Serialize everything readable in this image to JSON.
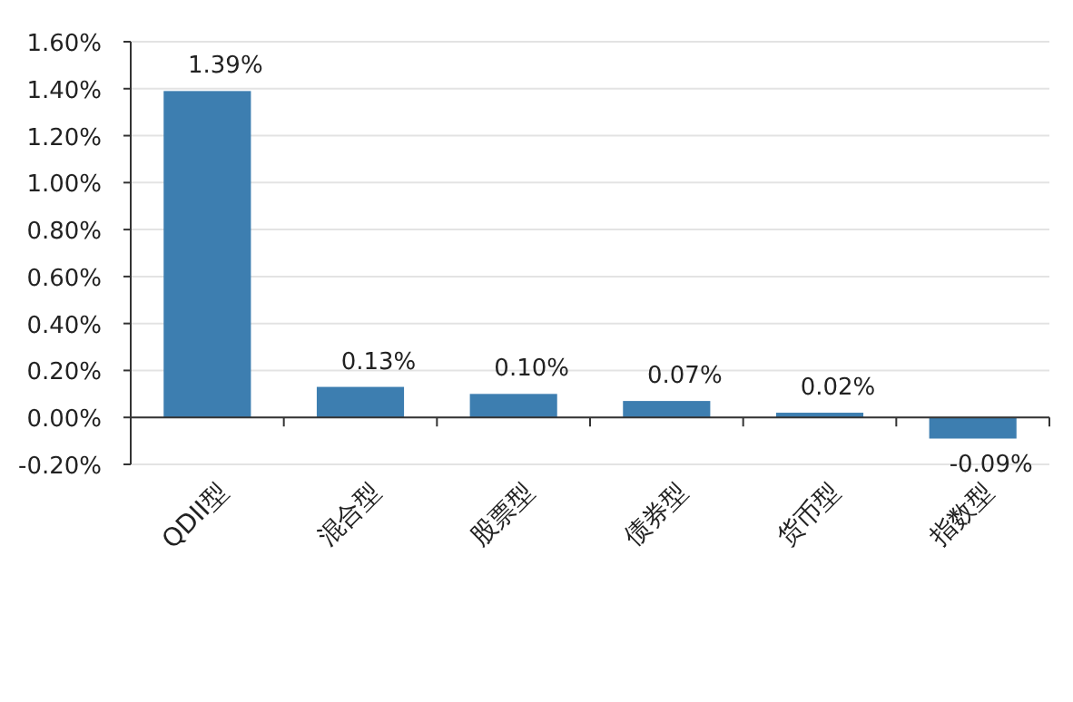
{
  "chart_data": {
    "type": "bar",
    "categories": [
      "QDII型",
      "混合型",
      "股票型",
      "债券型",
      "货币型",
      "指数型"
    ],
    "values": [
      1.39,
      0.13,
      0.1,
      0.07,
      0.02,
      -0.09
    ],
    "value_labels": [
      "1.39%",
      "0.13%",
      "0.10%",
      "0.07%",
      "0.02%",
      "-0.09%"
    ],
    "color": "#3d7eb0",
    "ylim": [
      -0.2,
      1.6
    ],
    "yticks": [
      {
        "value": -0.2,
        "label": "-0.20%"
      },
      {
        "value": 0,
        "label": "0.00%"
      },
      {
        "value": 0.2,
        "label": "0.20%"
      },
      {
        "value": 0.4,
        "label": "0.40%"
      },
      {
        "value": 0.6,
        "label": "0.60%"
      },
      {
        "value": 0.8,
        "label": "0.80%"
      },
      {
        "value": 1.0,
        "label": "1.00%"
      },
      {
        "value": 1.2,
        "label": "1.20%"
      },
      {
        "value": 1.4,
        "label": "1.40%"
      },
      {
        "value": 1.6,
        "label": "1.60%"
      }
    ],
    "grid": "y"
  }
}
